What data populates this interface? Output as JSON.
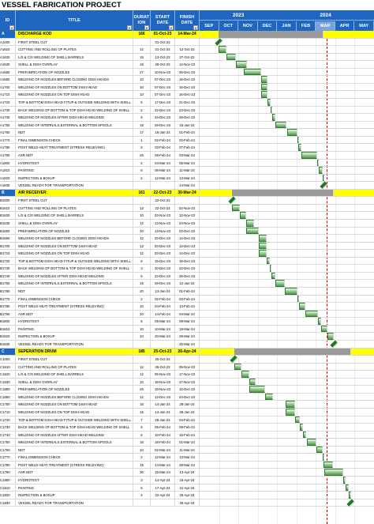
{
  "page": {
    "title": "VESSEL FABRICATION PROJECT"
  },
  "header": {
    "id": "ID",
    "title": "TITLE",
    "duration": "DURAT ION",
    "start": "START DATE",
    "finish": "FINISH DATE",
    "years": [
      "2023",
      "2024"
    ],
    "months": [
      "SEP",
      "OCT",
      "NOV",
      "DEC",
      "JAN",
      "FEB",
      "MAR",
      "APR",
      "MAY"
    ]
  },
  "colors": {
    "header": "#1f66c1",
    "section": "#ffff00",
    "bar": "#4c9a45"
  },
  "timeline": {
    "start_date": "2023-09-01",
    "current_month_index": 6
  },
  "rows": [
    {
      "sec": true,
      "id": "A",
      "title": "DISCHARGE KOD",
      "dur": "166",
      "start": "01-Oct-23",
      "finish": "14-Mar-24"
    },
    {
      "id": "A1000",
      "title": "FIRST STEEL CUT",
      "dur": "",
      "start": "01-Oct-23",
      "finish": ""
    },
    {
      "id": "A1610",
      "title": "CUTTING AND ROLLING OF PLATES",
      "dur": "12",
      "start": "01-Oct-23",
      "finish": "12-Oct-23"
    },
    {
      "id": "A1620",
      "title": "L/S & C/S WELDING OF SHELL BARRELS",
      "dur": "15",
      "start": "13-Oct-23",
      "finish": "27-Oct-23"
    },
    {
      "id": "A1630",
      "title": "SHELL & DISH OVERLAY",
      "dur": "18",
      "start": "28-Oct-23",
      "finish": "14-Nov-23"
    },
    {
      "id": "A1650",
      "title": "PREFABRICATION OF NOZZLES",
      "dur": "27",
      "start": "10-Nov-23",
      "finish": "06-Dec-23"
    },
    {
      "id": "A1660",
      "title": "WELDING OF NOZZLES BEFORE CLOSING DISH HEADS",
      "dur": "10",
      "start": "07-Dec-23",
      "finish": "16-Dec-23"
    },
    {
      "id": "A1700",
      "title": "WELDING OF NOZZLES ON BOTTOM DISH HEAD",
      "dur": "10",
      "start": "07-Dec-23",
      "finish": "16-Dec-23"
    },
    {
      "id": "A1710",
      "title": "WELDING OF NOZZLES ON TOP DISH HEAD",
      "dur": "10",
      "start": "07-Dec-23",
      "finish": "16-Dec-23"
    },
    {
      "id": "A1720",
      "title": "TOP & BOTTOM DISH HEAD FITUP & OUTSIDE WELDING WITH SHELL",
      "dur": "5",
      "start": "17-Dec-23",
      "finish": "21-Dec-23"
    },
    {
      "id": "A1730",
      "title": "BACK WELDING OF BOTTOM & TOP DISH HEAD WELDING OF SHELL",
      "dur": "2",
      "start": "22-Dec-23",
      "finish": "23-Dec-23"
    },
    {
      "id": "A1740",
      "title": "WELDING OF NOZZLES AFTER DISH HEAD WELDING",
      "dur": "5",
      "start": "24-Dec-23",
      "finish": "28-Dec-23"
    },
    {
      "id": "A1750",
      "title": "WELDING OF INTERNALS,EXTERNAL & BOTTOM SPOOLS",
      "dur": "18",
      "start": "29-Dec-23",
      "finish": "15-Jan-24"
    },
    {
      "id": "A1760",
      "title": "NDT",
      "dur": "17",
      "start": "16-Jan-24",
      "finish": "01-Feb-24"
    },
    {
      "id": "A1770",
      "title": "FINAL DIMENSION CHECK",
      "dur": "1",
      "start": "02-Feb-24",
      "finish": "02-Feb-24"
    },
    {
      "id": "A1780",
      "title": "POST WELD HEAT TREATMENT (STRESS RELIEVING)",
      "dur": "5",
      "start": "03-Feb-24",
      "finish": "07-Feb-24"
    },
    {
      "id": "A1790",
      "title": "ASR NDT",
      "dur": "25",
      "start": "08-Feb-24",
      "finish": "03-Mar-24"
    },
    {
      "id": "A1800",
      "title": "HYDROTEST",
      "dur": "2",
      "start": "04-Mar-24",
      "finish": "05-Mar-24"
    },
    {
      "id": "A1810",
      "title": "PAINTING",
      "dur": "6",
      "start": "06-Mar-24",
      "finish": "11-Mar-24"
    },
    {
      "id": "A1820",
      "title": "INSPECTION & BOXUP",
      "dur": "2",
      "start": "12-Mar-24",
      "finish": "13-Mar-24"
    },
    {
      "id": "A1830",
      "title": "VESSEL READY FOR TRANSPORTATION",
      "dur": "",
      "start": "",
      "finish": "14-Mar-24"
    },
    {
      "sec": true,
      "id": "B",
      "title": "AIR RECEIVER",
      "dur": "161",
      "start": "22-Oct-23",
      "finish": "30-Mar-24"
    },
    {
      "id": "B1000",
      "title": "FIRST STEEL CUT",
      "dur": "",
      "start": "22-Oct-23",
      "finish": ""
    },
    {
      "id": "B1610",
      "title": "CUTTING AND ROLLING OF PLATES",
      "dur": "12",
      "start": "22-Oct-23",
      "finish": "02-Nov-23"
    },
    {
      "id": "B1620",
      "title": "L/S & C/S WELDING OF SHELL BARRELS",
      "dur": "10",
      "start": "03-Nov-23",
      "finish": "12-Nov-23"
    },
    {
      "id": "B1630",
      "title": "SHELL & DISH OVERLAY",
      "dur": "12",
      "start": "13-Nov-23",
      "finish": "24-Nov-23"
    },
    {
      "id": "B1650",
      "title": "PREFABRICATION OF NOZZLES",
      "dur": "20",
      "start": "13-Nov-23",
      "finish": "02-Dec-23"
    },
    {
      "id": "B1660",
      "title": "WELDING OF NOZZLES BEFORE CLOSING DISH HEADS",
      "dur": "12",
      "start": "03-Dec-23",
      "finish": "14-Dec-23"
    },
    {
      "id": "B1700",
      "title": "WELDING OF NOZZLES ON BOTTOM DISH HEAD",
      "dur": "12",
      "start": "03-Dec-23",
      "finish": "14-Dec-23"
    },
    {
      "id": "B1710",
      "title": "WELDING OF NOZZLES ON TOP DISH HEAD",
      "dur": "12",
      "start": "03-Dec-23",
      "finish": "14-Dec-23"
    },
    {
      "id": "B1720",
      "title": "TOP & BOTTOM DISH HEAD FITUP & OUTSIDE WELDING WITH SHELL",
      "dur": "5",
      "start": "15-Dec-23",
      "finish": "19-Dec-23"
    },
    {
      "id": "B1730",
      "title": "BACK WELDING OF BOTTOM & TOP DISH HEAD WELDING OF SHELL",
      "dur": "3",
      "start": "20-Dec-23",
      "finish": "22-Dec-23"
    },
    {
      "id": "B1740",
      "title": "WELDING OF NOZZLES AFTER DISH HEAD WELDING",
      "dur": "6",
      "start": "23-Dec-23",
      "finish": "28-Dec-23"
    },
    {
      "id": "B1750",
      "title": "WELDING OF INTERNALS,EXTERNAL & BOTTOM SPOOLS",
      "dur": "15",
      "start": "29-Dec-23",
      "finish": "12-Jan-24"
    },
    {
      "id": "B1760",
      "title": "NDT",
      "dur": "20",
      "start": "13-Jan-24",
      "finish": "01-Feb-24"
    },
    {
      "id": "B1770",
      "title": "FINAL DIMENSION CHECK",
      "dur": "2",
      "start": "02-Feb-24",
      "finish": "03-Feb-24"
    },
    {
      "id": "B1780",
      "title": "POST WELD HEAT TREATMENT (STRESS RELEVING)",
      "dur": "10",
      "start": "04-Feb-24",
      "finish": "13-Feb-24"
    },
    {
      "id": "B1790",
      "title": "ASR NDT",
      "dur": "20",
      "start": "14-Feb-24",
      "finish": "04-Mar-24"
    },
    {
      "id": "B1800",
      "title": "HYDROTEST",
      "dur": "5",
      "start": "05-Mar-24",
      "finish": "09-Mar-24"
    },
    {
      "id": "B1810",
      "title": "PAINTING",
      "dur": "10",
      "start": "10-Mar-24",
      "finish": "19-Mar-24"
    },
    {
      "id": "B1820",
      "title": "INSPECTION & BOXUP",
      "dur": "10",
      "start": "20-Mar-24",
      "finish": "29-Mar-24"
    },
    {
      "id": "B1830",
      "title": "VESSEL READY FOR TRANSPORTATION",
      "dur": "",
      "start": "",
      "finish": "30-Mar-24"
    },
    {
      "sec": true,
      "id": "C",
      "title": "SEPERATION DRUM",
      "dur": "185",
      "start": "25-Oct-23",
      "finish": "26-Apr-24"
    },
    {
      "id": "C1000",
      "title": "FIRST STEEL CUT",
      "dur": "",
      "start": "25-Oct-23",
      "finish": ""
    },
    {
      "id": "C1610",
      "title": "CUTTING AND ROLLING OF PLATES",
      "dur": "12",
      "start": "25-Oct-23",
      "finish": "05-Nov-23"
    },
    {
      "id": "C1620",
      "title": "L/S & C/S WELDING OF SHELL BARRELS",
      "dur": "12",
      "start": "06-Nov-23",
      "finish": "17-Nov-23"
    },
    {
      "id": "C1630",
      "title": "SHELL & DISH OVERLAY",
      "dur": "10",
      "start": "18-Nov-23",
      "finish": "27-Nov-23"
    },
    {
      "id": "C1650",
      "title": "PREFABRICATION OF NOZZLES",
      "dur": "25",
      "start": "18-Nov-23",
      "finish": "12-Dec-23"
    },
    {
      "id": "C1660",
      "title": "WELDING OF NOZZLES BEFORE CLOSING DISH HEADS",
      "dur": "12",
      "start": "13-Dec-23",
      "finish": "24-Dec-23"
    },
    {
      "id": "C1700",
      "title": "WELDING OF NOZZLES ON BOTTOM DISH HEAD",
      "dur": "15",
      "start": "14-Jan-24",
      "finish": "28-Jan-24"
    },
    {
      "id": "C1710",
      "title": "WELDING OF NOZZLES ON TOP DISH HEAD",
      "dur": "15",
      "start": "14-Jan-24",
      "finish": "28-Jan-24"
    },
    {
      "id": "C1720",
      "title": "TOP & BOTTOM DISH HEAD FITUP & OUTSIDE WELDING WITH SHELL",
      "dur": "7",
      "start": "29-Jan-24",
      "finish": "04-Feb-24"
    },
    {
      "id": "C1730",
      "title": "BACK WELDING OF BOTTOM & TOP DISH HEAD WELDING OF SHELL",
      "dur": "5",
      "start": "05-Feb-24",
      "finish": "09-Feb-24"
    },
    {
      "id": "C1740",
      "title": "WELDING OF NOZZLES AFTER DISH HEAD WELDING",
      "dur": "6",
      "start": "10-Feb-24",
      "finish": "15-Feb-24"
    },
    {
      "id": "C1750",
      "title": "WELDING OF INTERNALS,EXTERNAL & BOTTOM SPOOLS",
      "dur": "15",
      "start": "16-Feb-24",
      "finish": "01-Mar-24"
    },
    {
      "id": "C1760",
      "title": "NDT",
      "dur": "10",
      "start": "02-Mar-24",
      "finish": "11-Mar-24"
    },
    {
      "id": "C1770",
      "title": "FINAL DIMENSION CHECK",
      "dur": "2",
      "start": "12-Mar-24",
      "finish": "13-Mar-24"
    },
    {
      "id": "C1780",
      "title": "POST WELD HEAT TREATMENT (STRESS RELEVING)",
      "dur": "15",
      "start": "14-Mar-24",
      "finish": "28-Mar-24"
    },
    {
      "id": "C1790",
      "title": "ASR NDT",
      "dur": "30",
      "start": "15-Mar-24",
      "finish": "13-Apr-24"
    },
    {
      "id": "C1800",
      "title": "HYDROTEST",
      "dur": "3",
      "start": "14-Apr-24",
      "finish": "16-Apr-24"
    },
    {
      "id": "C1810",
      "title": "PAINTING",
      "dur": "5",
      "start": "17-Apr-24",
      "finish": "21-Apr-24"
    },
    {
      "id": "C1820",
      "title": "INSPECTION & BOXUP",
      "dur": "4",
      "start": "22-Apr-24",
      "finish": "25-Apr-24"
    },
    {
      "id": "C1830",
      "title": "VESSEL READY FOR TRANSPORTATION",
      "dur": "",
      "start": "",
      "finish": "26-Apr-24"
    }
  ]
}
